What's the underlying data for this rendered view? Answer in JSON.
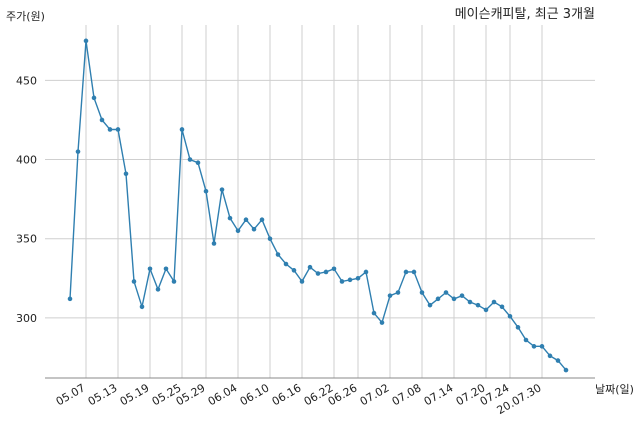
{
  "chart_data": {
    "type": "line",
    "title": "메이슨캐피탈, 최근 3개월",
    "xlabel": "날짜(일)",
    "ylabel": "주가(원)",
    "ylim": [
      262,
      485
    ],
    "yticks": [
      300,
      350,
      400,
      450
    ],
    "grid": true,
    "series_color": "#2f7fb0",
    "xtick_labels": [
      "05.07",
      "05.13",
      "05.19",
      "05.25",
      "05.29",
      "06.04",
      "06.10",
      "06.16",
      "06.22",
      "06.26",
      "07.02",
      "07.08",
      "07.14",
      "07.20",
      "07.24",
      "20.07.30"
    ],
    "xtick_positions": [
      2,
      6,
      10,
      14,
      17,
      21,
      25,
      29,
      33,
      36,
      40,
      44,
      48,
      52,
      55,
      59
    ],
    "y_values": [
      312,
      405,
      475,
      439,
      425,
      419,
      419,
      391,
      323,
      307,
      331,
      318,
      331,
      323,
      419,
      400,
      398,
      380,
      347,
      381,
      363,
      355,
      362,
      356,
      362,
      350,
      340,
      334,
      330,
      323,
      332,
      328,
      329,
      331,
      323,
      324,
      325,
      329,
      303,
      297,
      314,
      316,
      329,
      329,
      316,
      308,
      312,
      316,
      312,
      314,
      310,
      308,
      305,
      310,
      307,
      301,
      294,
      286,
      282,
      282,
      276,
      273,
      267
    ]
  }
}
